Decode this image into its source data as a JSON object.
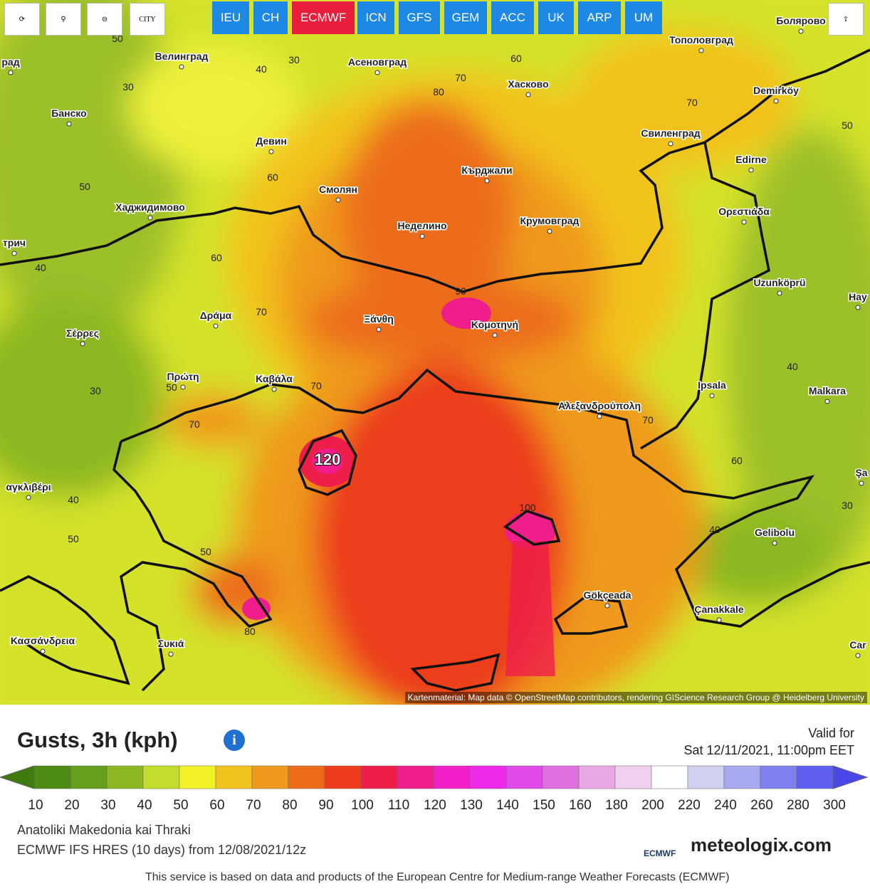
{
  "toolbar": {
    "city_button": "CITY"
  },
  "tabs": [
    "IEU",
    "CH",
    "ECMWF",
    "ICN",
    "GFS",
    "GEM",
    "ACC",
    "UK",
    "ARP",
    "UM"
  ],
  "active_tab": "ECMWF",
  "map": {
    "places": [
      "рад",
      "Велинград",
      "Асеновград",
      "Тополовград",
      "Болярово",
      "Хасково",
      "Demirköy",
      "Банско",
      "Девин",
      "Свиленград",
      "Кърджали",
      "Edirne",
      "Смолян",
      "Хаджидимово",
      "Неделино",
      "Крумовград",
      "Ορεστιάδα",
      "трич",
      "Uzunköprü",
      "Hay",
      "Ξάνθη",
      "Κομοτηνή",
      "Δράμα",
      "Σέρρες",
      "Πρώτη",
      "Καβάλα",
      "Ipsala",
      "Malkara",
      "Αλεξανδρούπολη",
      "Şa",
      "αγκλιβέρι",
      "Gelibolu",
      "Gökçeada",
      "Çanakkale",
      "Κασσάνδρεια",
      "Συκιά",
      "Car"
    ],
    "contour_labels": [
      "50",
      "40",
      "30",
      "30",
      "60",
      "70",
      "80",
      "70",
      "50",
      "60",
      "50",
      "60",
      "40",
      "70",
      "90",
      "40",
      "30",
      "50",
      "70",
      "70",
      "70",
      "60",
      "120",
      "40",
      "30",
      "100",
      "40",
      "50",
      "50",
      "80"
    ],
    "attribution": "Kartenmaterial: Map data © OpenStreetMap contributors, rendering GIScience Research Group @ Heidelberg University"
  },
  "legend": {
    "title": "Gusts, 3h (kph)",
    "valid_label": "Valid for",
    "valid_time": "Sat 12/11/2021, 11:00pm EET",
    "ticks": [
      10,
      20,
      30,
      40,
      50,
      60,
      70,
      80,
      90,
      100,
      110,
      120,
      130,
      140,
      150,
      160,
      180,
      200,
      220,
      240,
      260,
      280,
      300
    ],
    "colors": [
      "#3f7a0f",
      "#4c8c12",
      "#66a01a",
      "#8cb723",
      "#c4dc2c",
      "#f2f227",
      "#f2c21f",
      "#ef9a1c",
      "#ec6c1a",
      "#ec3c1c",
      "#ee1e4a",
      "#f01e8c",
      "#f21ec8",
      "#f028e8",
      "#e04ae8",
      "#e070e0",
      "#e8a8e8",
      "#f0d0f0",
      "#ffffff",
      "#d0d0f0",
      "#a8a8f0",
      "#8080f0",
      "#6060f0",
      "#4848e8"
    ]
  },
  "info": {
    "region": "Anatoliki Makedonia kai Thraki",
    "model": "ECMWF IFS HRES (10 days) from 12/08/2021/12z"
  },
  "footer": {
    "notice": "This service is based on data and products of the European Centre for Medium-range Weather Forecasts (ECMWF)",
    "logo": "meteologix.com",
    "ecmwf_logo": "ECMWF"
  }
}
